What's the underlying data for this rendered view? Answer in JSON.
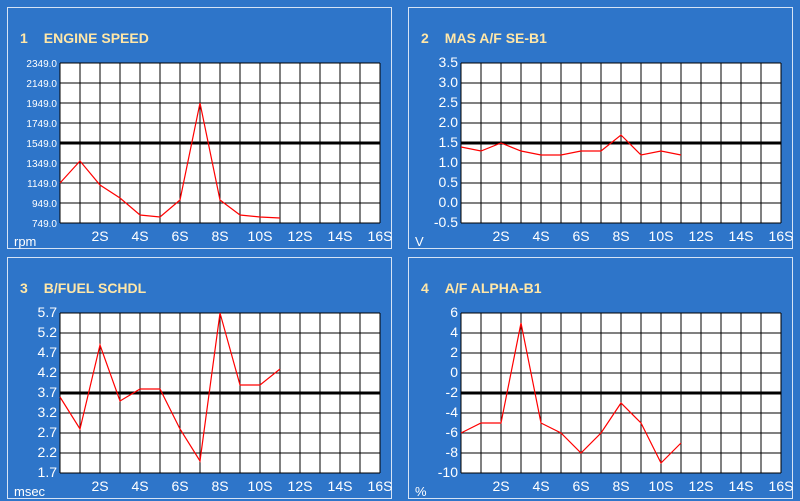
{
  "chart_data": [
    {
      "type": "line",
      "number": "1",
      "title": "ENGINE SPEED",
      "unit": "rpm",
      "ytick_labels": [
        "2349.0",
        "2149.0",
        "1949.0",
        "1749.0",
        "1549.0",
        "1349.0",
        "1149.0",
        "949.0",
        "749.0"
      ],
      "ylim": [
        749,
        2349
      ],
      "reference_y": 1549,
      "xtick_labels": [
        "2S",
        "4S",
        "6S",
        "8S",
        "10S",
        "12S",
        "14S",
        "16S"
      ],
      "xlim": [
        0,
        16
      ],
      "series": [
        {
          "x": [
            0,
            1,
            2,
            3,
            4,
            5,
            6,
            7,
            8,
            9,
            10,
            11
          ],
          "y": [
            1149,
            1369,
            1129,
            999,
            829,
            809,
            979,
            1949,
            979,
            829,
            809,
            799
          ]
        }
      ]
    },
    {
      "type": "line",
      "number": "2",
      "title": "MAS A/F SE-B1",
      "unit": "V",
      "ytick_labels": [
        "3.5",
        "3.0",
        "2.5",
        "2.0",
        "1.5",
        "1.0",
        "0.5",
        "0.0",
        "-0.5"
      ],
      "ylim": [
        -0.5,
        3.5
      ],
      "reference_y": 1.5,
      "xtick_labels": [
        "2S",
        "4S",
        "6S",
        "8S",
        "10S",
        "12S",
        "14S",
        "16S"
      ],
      "xlim": [
        0,
        16
      ],
      "series": [
        {
          "x": [
            0,
            1,
            2,
            3,
            4,
            5,
            6,
            7,
            8,
            9,
            10,
            11
          ],
          "y": [
            1.4,
            1.3,
            1.5,
            1.3,
            1.2,
            1.2,
            1.3,
            1.3,
            1.7,
            1.2,
            1.3,
            1.2
          ]
        }
      ]
    },
    {
      "type": "line",
      "number": "3",
      "title": "B/FUEL SCHDL",
      "unit": "msec",
      "ytick_labels": [
        "5.7",
        "5.2",
        "4.7",
        "4.2",
        "3.7",
        "3.2",
        "2.7",
        "2.2",
        "1.7"
      ],
      "ylim": [
        1.7,
        5.7
      ],
      "reference_y": 3.7,
      "xtick_labels": [
        "2S",
        "4S",
        "6S",
        "8S",
        "10S",
        "12S",
        "14S",
        "16S"
      ],
      "xlim": [
        0,
        16
      ],
      "series": [
        {
          "x": [
            0,
            1,
            2,
            3,
            4,
            5,
            6,
            7,
            8,
            9,
            10,
            11
          ],
          "y": [
            3.6,
            2.8,
            4.9,
            3.5,
            3.8,
            3.8,
            2.8,
            2.0,
            5.7,
            3.9,
            3.9,
            4.3
          ]
        }
      ]
    },
    {
      "type": "line",
      "number": "4",
      "title": "A/F ALPHA-B1",
      "unit": "%",
      "ytick_labels": [
        "6",
        "4",
        "2",
        "0",
        "-2",
        "-4",
        "-6",
        "-8",
        "-10"
      ],
      "ylim": [
        -10,
        6
      ],
      "reference_y": -2,
      "xtick_labels": [
        "2S",
        "4S",
        "6S",
        "8S",
        "10S",
        "12S",
        "14S",
        "16S"
      ],
      "xlim": [
        0,
        16
      ],
      "series": [
        {
          "x": [
            0,
            1,
            2,
            3,
            4,
            5,
            6,
            7,
            8,
            9,
            10,
            11
          ],
          "y": [
            -6,
            -5,
            -5,
            5,
            -5,
            -6,
            -8,
            -6,
            -3,
            -5,
            -9,
            -7
          ]
        }
      ]
    }
  ],
  "colors": {
    "background": "#2e75c9",
    "plot_area": "#ffffff",
    "grid": "#000000",
    "reference_line": "#000000",
    "series_line": "#ff0000",
    "title_text": "#ffe7a8",
    "axis_text": "#ffffff"
  }
}
